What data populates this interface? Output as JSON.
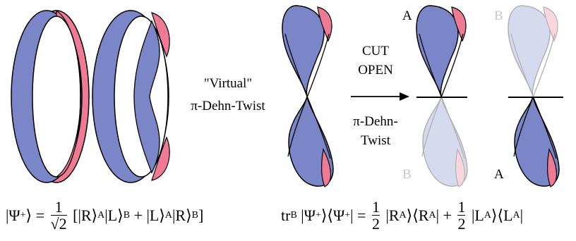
{
  "labels": {
    "virtual": "\"Virtual\"",
    "virtual_twist": "π-Dehn-Twist",
    "cut": "CUT",
    "open": "OPEN",
    "twist_1": "π-Dehn-",
    "twist_2": "Twist",
    "a_top": "A",
    "b_top": "B",
    "b_bottom": "B",
    "a_bottom": "A"
  },
  "equations": [
    {
      "tokens": [
        {
          "text": "|Ψ"
        },
        {
          "sup": "+"
        },
        {
          "text": "⟩ = "
        },
        {
          "num": "1",
          "den": "√2"
        },
        {
          "text": " [|R⟩"
        },
        {
          "sub": "A"
        },
        {
          "text": "|L⟩"
        },
        {
          "sub": "B"
        },
        {
          "text": " + |L⟩"
        },
        {
          "sub": "A"
        },
        {
          "text": "|R⟩"
        },
        {
          "sub": "B"
        },
        {
          "text": "]"
        }
      ]
    },
    {
      "tokens": [
        {
          "text": "tr"
        },
        {
          "sub": "B"
        },
        {
          "text": " |Ψ"
        },
        {
          "sup": "+"
        },
        {
          "text": "⟩⟨Ψ"
        },
        {
          "sup": "+"
        },
        {
          "text": "| = "
        },
        {
          "num": "1",
          "den": "2"
        },
        {
          "text": " |R"
        },
        {
          "sub": "A"
        },
        {
          "text": "⟩⟨R"
        },
        {
          "sub": "A"
        },
        {
          "text": "| + "
        },
        {
          "num": "1",
          "den": "2"
        },
        {
          "text": " |L"
        },
        {
          "sub": "A"
        },
        {
          "text": "⟩⟨L"
        },
        {
          "sub": "A"
        },
        {
          "text": "|"
        }
      ]
    }
  ]
}
